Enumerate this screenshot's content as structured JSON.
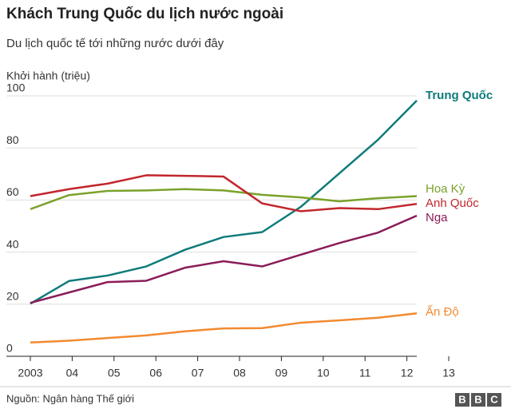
{
  "chart_data": {
    "type": "line",
    "title": "Khách Trung Quốc du lịch nước ngoài",
    "subtitle": "Du lịch quốc tế tới những nước dưới đây",
    "ylabel": "Khởi hành (triệu)",
    "categories": [
      "2003",
      "04",
      "05",
      "06",
      "07",
      "08",
      "09",
      "10",
      "11",
      "12",
      "13"
    ],
    "ylim": [
      0,
      100
    ],
    "yticks": [
      0,
      20,
      40,
      60,
      80,
      100
    ],
    "grid": true,
    "series": [
      {
        "name": "Trung Quốc",
        "color": "#0f7b7b",
        "values": [
          20.2,
          28.9,
          31,
          34.5,
          40.9,
          45.8,
          47.7,
          57.4,
          70.3,
          83.2,
          98.2
        ]
      },
      {
        "name": "Hoa Kỳ",
        "color": "#7aa22b",
        "values": [
          56.5,
          61.9,
          63.5,
          63.7,
          64.2,
          63.7,
          62,
          61,
          59.5,
          60.7,
          61.5
        ]
      },
      {
        "name": "Anh Quốc",
        "color": "#c1272d",
        "values": [
          61.5,
          64.2,
          66.3,
          69.5,
          69.3,
          69,
          58.7,
          55.7,
          56.9,
          56.5,
          58.5
        ]
      },
      {
        "name": "Nga",
        "color": "#8a1c59",
        "values": [
          20.5,
          24.5,
          28.5,
          29,
          34,
          36.5,
          34.5,
          39,
          43.5,
          47.5,
          54
        ]
      },
      {
        "name": "Ấn Độ",
        "color": "#f28a30",
        "values": [
          5.3,
          6,
          7,
          8,
          9.6,
          10.7,
          10.8,
          12.9,
          13.8,
          14.8,
          16.5
        ]
      }
    ],
    "source": "Nguồn: Ngân hàng Thế giới",
    "logo": "BBC"
  }
}
